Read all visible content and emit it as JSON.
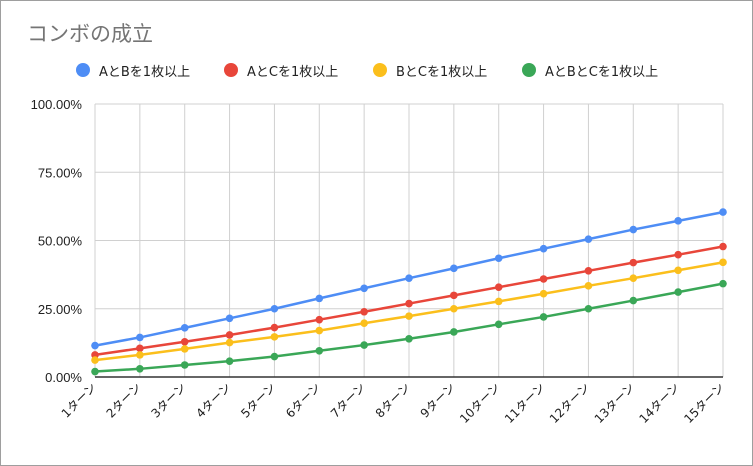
{
  "chart_data": {
    "type": "line",
    "title": "コンボの成立",
    "categories": [
      "1ターン",
      "2ターン",
      "3ターン",
      "4ターン",
      "5ターン",
      "6ターン",
      "7ターン",
      "8ターン",
      "9ターン",
      "10ターン",
      "11ターン",
      "12ターン",
      "13ターン",
      "14ターン",
      "15ターン"
    ],
    "y_ticks": [
      "0.00%",
      "25.00%",
      "50.00%",
      "75.00%",
      "100.00%"
    ],
    "ylim": [
      0,
      100
    ],
    "grid": true,
    "legend_position": "top",
    "series": [
      {
        "name": "AとBを1枚以上",
        "color": "#4e8df5",
        "values": [
          11.5,
          14.5,
          18.0,
          21.5,
          25.0,
          28.8,
          32.5,
          36.2,
          39.8,
          43.5,
          47.0,
          50.5,
          54.0,
          57.2,
          60.4
        ]
      },
      {
        "name": "AとCを1枚以上",
        "color": "#e8463a",
        "values": [
          8.1,
          10.5,
          12.9,
          15.4,
          18.1,
          21.0,
          23.9,
          26.9,
          29.9,
          32.9,
          35.9,
          38.9,
          41.9,
          44.8,
          47.8
        ]
      },
      {
        "name": "BとCを1枚以上",
        "color": "#fbbf1c",
        "values": [
          6.2,
          8.1,
          10.3,
          12.6,
          14.7,
          17.0,
          19.7,
          22.3,
          25.0,
          27.7,
          30.5,
          33.4,
          36.2,
          39.1,
          42.0
        ]
      },
      {
        "name": "AとBとCを1枚以上",
        "color": "#3aa757",
        "values": [
          2.0,
          3.0,
          4.4,
          5.8,
          7.5,
          9.6,
          11.7,
          14.0,
          16.5,
          19.3,
          22.0,
          25.0,
          28.0,
          31.1,
          34.2
        ]
      }
    ]
  }
}
